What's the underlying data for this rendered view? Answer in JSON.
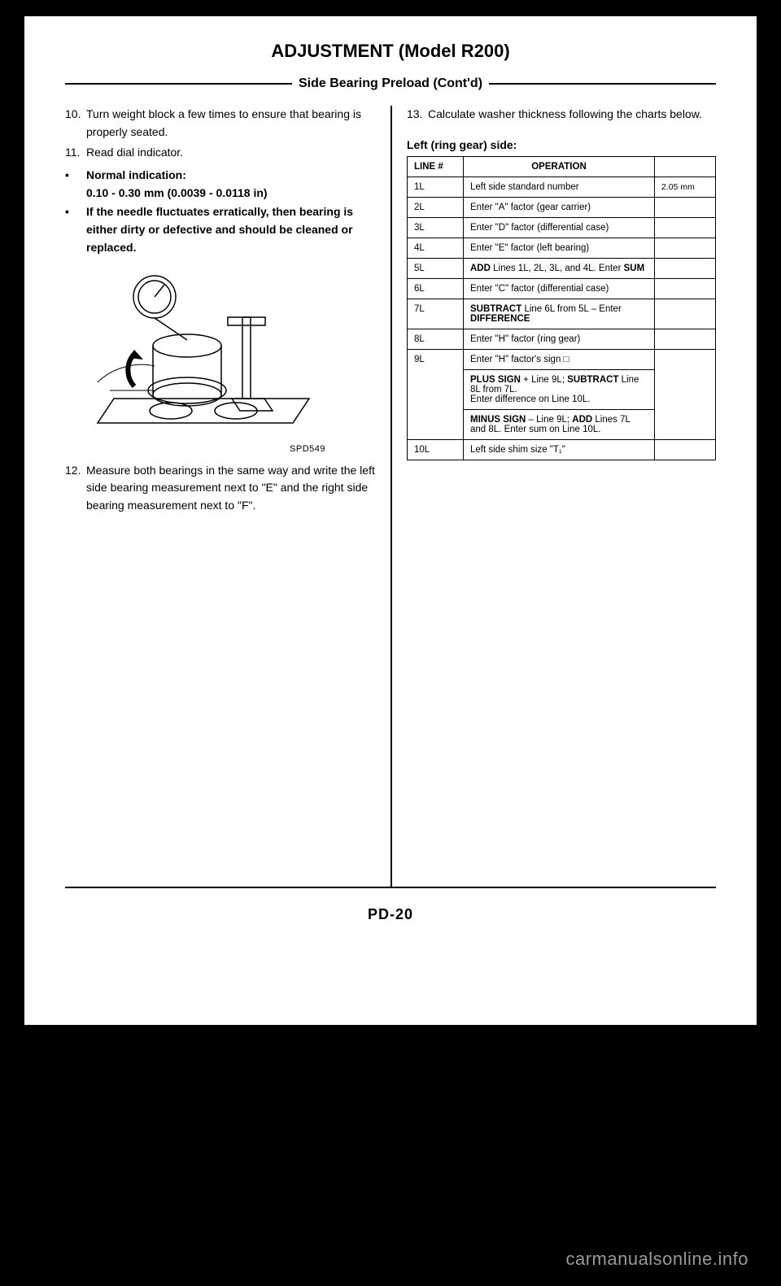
{
  "title": "ADJUSTMENT (Model R200)",
  "subtitle": "Side Bearing Preload (Cont'd)",
  "left": {
    "step10": {
      "num": "10.",
      "text": "Turn weight block a few times to ensure that bearing is properly seated."
    },
    "step11": {
      "num": "11.",
      "text": "Read dial indicator."
    },
    "bullet1_label": "Normal indication:",
    "bullet1_value": "0.10 - 0.30 mm (0.0039 - 0.0118 in)",
    "bullet2": "If the needle fluctuates erratically, then bearing is either dirty or defective and should be cleaned or replaced.",
    "fig_label": "SPD549",
    "step12": {
      "num": "12.",
      "text": "Measure both bearings in the same way and write the left side bearing measurement next to \"E\" and the right side bearing measurement next to \"F\"."
    }
  },
  "right": {
    "step13": {
      "num": "13.",
      "text": "Calculate washer thickness following the charts below."
    },
    "table_caption": "Left (ring gear) side:",
    "header_line": "LINE #",
    "header_op": "OPERATION",
    "rows": [
      {
        "line": "1L",
        "op": "Left side standard number",
        "val": "2.05 mm"
      },
      {
        "line": "2L",
        "op": "Enter \"A\" factor (gear carrier)",
        "val": ""
      },
      {
        "line": "3L",
        "op": "Enter \"D\" factor (differential case)",
        "val": ""
      },
      {
        "line": "4L",
        "op": "Enter \"E\" factor (left bearing)",
        "val": ""
      },
      {
        "line": "5L",
        "op_html": "<b>ADD</b> Lines 1L, 2L, 3L, and 4L. Enter <b>SUM</b>",
        "val": ""
      },
      {
        "line": "6L",
        "op": "Enter \"C\" factor (differential case)",
        "val": ""
      },
      {
        "line": "7L",
        "op_html": "<b>SUBTRACT</b> Line 6L from 5L – Enter <b>DIFFERENCE</b>",
        "val": ""
      },
      {
        "line": "8L",
        "op": "Enter \"H\" factor (ring gear)",
        "val": ""
      }
    ],
    "row9_line": "9L",
    "row9_a": "Enter \"H\" factor's sign  □",
    "row9_b_html": "<b>PLUS SIGN</b>   +   Line 9L; <b>SUBTRACT</b> Line 8L from 7L.<br>Enter difference on Line 10L.",
    "row9_c_html": "<b>MINUS SIGN</b>   –   Line 9L; <b>ADD</b> Lines 7L and 8L.  Enter sum on Line 10L.",
    "row10": {
      "line": "10L",
      "op": "Left side shim size \"T₁\"",
      "val": ""
    }
  },
  "page_number": "PD-20",
  "watermark": "carmanualsonline.info"
}
